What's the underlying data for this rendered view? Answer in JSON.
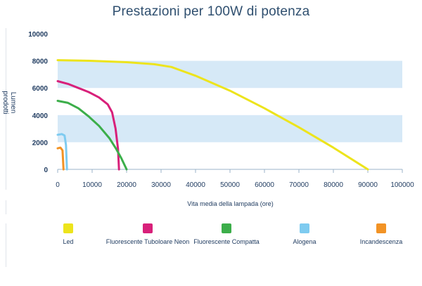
{
  "chart_data": {
    "type": "line",
    "title": "Prestazioni per 100W di potenza",
    "xlabel": "Vita media della lampada (ore)",
    "ylabel": "Lumen prodotti",
    "xlim": [
      0,
      100000
    ],
    "ylim": [
      0,
      10000
    ],
    "x_ticks": [
      "0",
      "10000",
      "20000",
      "30000",
      "40000",
      "50000",
      "60000",
      "70000",
      "80000",
      "90000",
      "100000"
    ],
    "y_ticks": [
      "0",
      "2000",
      "4000",
      "6000",
      "8000",
      "10000"
    ],
    "band_color": "#d6e9f7",
    "series": [
      {
        "name": "Led",
        "color": "#ede41c",
        "points": [
          [
            0,
            8050
          ],
          [
            10000,
            8000
          ],
          [
            20000,
            7900
          ],
          [
            28000,
            7750
          ],
          [
            33000,
            7550
          ],
          [
            40000,
            6900
          ],
          [
            50000,
            5800
          ],
          [
            60000,
            4500
          ],
          [
            70000,
            3100
          ],
          [
            80000,
            1600
          ],
          [
            90000,
            0
          ]
        ]
      },
      {
        "name": "Fluorescente Tuboloare Neon",
        "color": "#d8207a",
        "points": [
          [
            0,
            6500
          ],
          [
            3000,
            6300
          ],
          [
            6000,
            6000
          ],
          [
            9000,
            5700
          ],
          [
            12000,
            5300
          ],
          [
            14500,
            4800
          ],
          [
            15800,
            4200
          ],
          [
            16800,
            3000
          ],
          [
            17500,
            1500
          ],
          [
            17800,
            0
          ]
        ]
      },
      {
        "name": "Fluorescente Compatta",
        "color": "#3cae4a",
        "points": [
          [
            0,
            5050
          ],
          [
            3000,
            4900
          ],
          [
            6000,
            4500
          ],
          [
            9000,
            3900
          ],
          [
            12000,
            3200
          ],
          [
            15000,
            2300
          ],
          [
            17000,
            1500
          ],
          [
            18500,
            800
          ],
          [
            20000,
            0
          ]
        ]
      },
      {
        "name": "Alogena",
        "color": "#7ecbf0",
        "points": [
          [
            0,
            2550
          ],
          [
            1200,
            2600
          ],
          [
            2000,
            2500
          ],
          [
            2400,
            1800
          ],
          [
            2700,
            0
          ]
        ]
      },
      {
        "name": "Incandescenza",
        "color": "#f29325",
        "points": [
          [
            0,
            1550
          ],
          [
            800,
            1600
          ],
          [
            1400,
            1400
          ],
          [
            1700,
            0
          ]
        ]
      }
    ]
  }
}
